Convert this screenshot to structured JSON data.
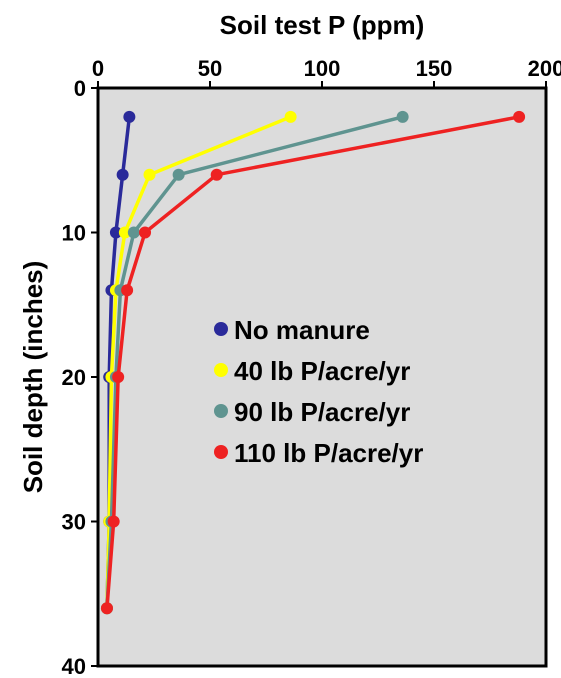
{
  "chart_data": {
    "type": "line",
    "xlabel": "Soil test P (ppm)",
    "ylabel": "Soil depth (inches)",
    "xlim": [
      0,
      200
    ],
    "ylim": [
      0,
      40
    ],
    "y_inverted": true,
    "x_axis_position": "top",
    "x_ticks": [
      "0",
      "50",
      "100",
      "150",
      "200"
    ],
    "y_ticks": [
      "0",
      "10",
      "20",
      "30",
      "40"
    ],
    "grid": false,
    "background": "#dcdcdc",
    "legend_position": "center-right",
    "series": [
      {
        "name": "No manure",
        "color": "#2a2a9a",
        "points": [
          [
            14,
            2
          ],
          [
            11,
            6
          ],
          [
            8,
            10
          ],
          [
            6,
            14
          ],
          [
            5,
            20
          ],
          [
            5,
            30
          ],
          [
            4,
            36
          ]
        ]
      },
      {
        "name": "40 lb P/acre/yr",
        "color": "#ffff00",
        "points": [
          [
            86,
            2
          ],
          [
            23,
            6
          ],
          [
            12,
            10
          ],
          [
            8,
            14
          ],
          [
            6,
            20
          ],
          [
            5,
            30
          ],
          [
            4,
            36
          ]
        ]
      },
      {
        "name": "90 lb P/acre/yr",
        "color": "#5f9490",
        "points": [
          [
            136,
            2
          ],
          [
            36,
            6
          ],
          [
            16,
            10
          ],
          [
            10,
            14
          ],
          [
            8,
            20
          ],
          [
            6,
            30
          ],
          [
            4,
            36
          ]
        ]
      },
      {
        "name": "110 lb P/acre/yr",
        "color": "#ee2222",
        "points": [
          [
            188,
            2
          ],
          [
            53,
            6
          ],
          [
            21,
            10
          ],
          [
            13,
            14
          ],
          [
            9,
            20
          ],
          [
            7,
            30
          ],
          [
            4,
            36
          ]
        ]
      }
    ]
  }
}
